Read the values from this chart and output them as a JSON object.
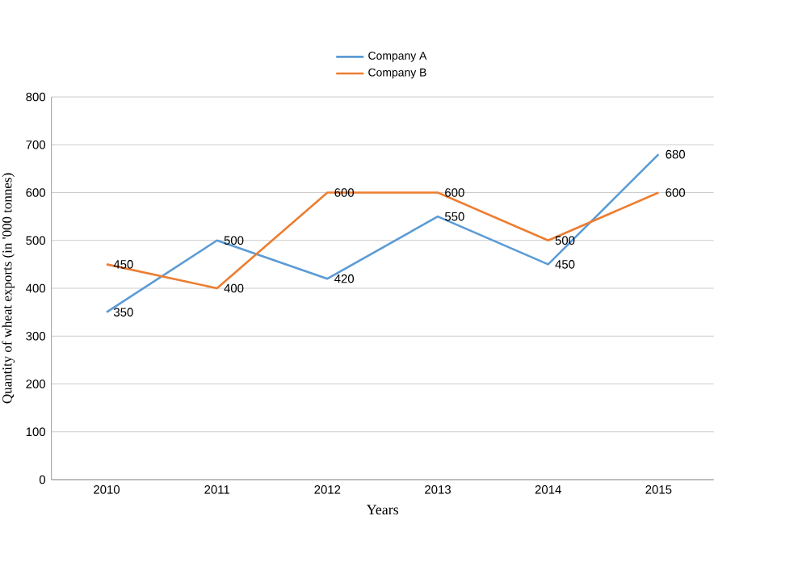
{
  "chart_data": {
    "type": "line",
    "xlabel": "Years",
    "ylabel": "Quantity  of wheat  exports  (in '000 tonnes)",
    "categories": [
      "2010",
      "2011",
      "2012",
      "2013",
      "2014",
      "2015"
    ],
    "series": [
      {
        "name": "Company A",
        "color": "#5b9bd5",
        "values": [
          350,
          500,
          420,
          550,
          450,
          680
        ]
      },
      {
        "name": "Company B",
        "color": "#ed7d31",
        "values": [
          450,
          400,
          600,
          600,
          500,
          600
        ]
      }
    ],
    "ylim": [
      0,
      800
    ],
    "yticks": [
      0,
      100,
      200,
      300,
      400,
      500,
      600,
      700,
      800
    ],
    "grid": "y",
    "legend": "top",
    "marker": "none",
    "line_style": "solid",
    "data_labels": true
  }
}
